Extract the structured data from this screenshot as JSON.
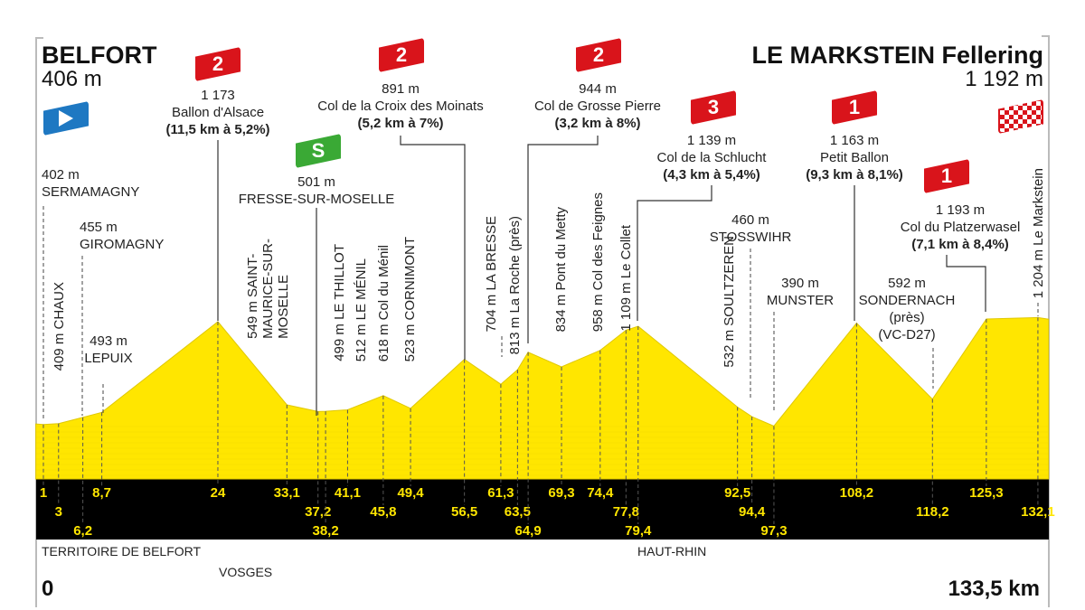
{
  "header": {
    "start_name": "BELFORT",
    "start_alt": "406 m",
    "finish_name": "LE MARKSTEIN Fellering",
    "finish_alt": "1 192 m"
  },
  "colors": {
    "profile": "#FFE600",
    "band": "#000000",
    "km_text": "#FFE600",
    "climb_flag": "#D9141B",
    "sprint_flag": "#3AA935",
    "start_flag": "#1E78C2"
  },
  "icons": {
    "start": "start-flag-icon",
    "finish": "checkered-finish-flag-icon",
    "sprint": "sprint-flag-icon",
    "climb": "climb-category-flag-icon"
  },
  "climbs": [
    {
      "cat": "2",
      "alt": "1 173",
      "name": "Ballon d'Alsace",
      "detail": "(11,5 km à 5,2%)"
    },
    {
      "cat": "2",
      "alt": "891 m",
      "name": "Col de la Croix des Moinats",
      "detail": "(5,2 km à 7%)"
    },
    {
      "cat": "2",
      "alt": "944 m",
      "name": "Col de Grosse Pierre",
      "detail": "(3,2 km à 8%)"
    },
    {
      "cat": "3",
      "alt": "1 139 m",
      "name": "Col de la Schlucht",
      "detail": "(4,3 km à 5,4%)"
    },
    {
      "cat": "1",
      "alt": "1 163 m",
      "name": "Petit Ballon",
      "detail": "(9,3 km à 8,1%)"
    },
    {
      "cat": "1",
      "alt": "1 193 m",
      "name": "Col du Platzerwasel",
      "detail": "(7,1 km à 8,4%)"
    }
  ],
  "sprint": {
    "label": "S",
    "alt": "501 m",
    "name": "FRESSE-SUR-MOSELLE"
  },
  "places": {
    "sermamagny": {
      "alt": "402 m",
      "name": "SERMAMAGNY"
    },
    "giromagny": {
      "alt": "455 m",
      "name": "GIROMAGNY"
    },
    "lepuix": {
      "alt": "493 m",
      "name": "LEPUIX"
    },
    "chaux": "409 m CHAUX",
    "stmaurice": [
      "549 m SAINT-",
      "MAURICE-SUR-",
      "MOSELLE"
    ],
    "thillot": "499 m LE THILLOT",
    "menil": "512 m LE MÉNIL",
    "colmenil": "618 m Col du Ménil",
    "cornimont": "523 m CORNIMONT",
    "bresse": "704 m LA BRESSE",
    "laroche": "813 m La Roche (près)",
    "metty": "834 m Pont du Metty",
    "feignes": "958 m Col des Feignes",
    "collet": "1 109 m Le Collet",
    "soultzeren": "532 m SOULTZEREN",
    "stosswihr": {
      "alt": "460 m",
      "name": "STOSSWIHR"
    },
    "munster": {
      "alt": "390 m",
      "name": "MUNSTER"
    },
    "sondernach": {
      "alt": "592 m",
      "name": "SONDERNACH",
      "l2": "(près)",
      "l3": "(VC-D27)"
    },
    "markstein": "1 204 m Le Markstein"
  },
  "departments": [
    "TERRITOIRE DE BELFORT",
    "VOSGES",
    "HAUT-RHIN"
  ],
  "distance": {
    "start": "0",
    "end": "133,5 km"
  },
  "chart_data": {
    "type": "area",
    "xlabel": "",
    "ylabel": "",
    "xlim": [
      0,
      133.5
    ],
    "points": [
      [
        0,
        406
      ],
      [
        1,
        402
      ],
      [
        3,
        409
      ],
      [
        6.2,
        455
      ],
      [
        8.7,
        493
      ],
      [
        24,
        1173
      ],
      [
        33.1,
        549
      ],
      [
        37.2,
        499
      ],
      [
        38.2,
        501
      ],
      [
        41.1,
        512
      ],
      [
        45.8,
        618
      ],
      [
        49.4,
        523
      ],
      [
        56.5,
        891
      ],
      [
        61.3,
        704
      ],
      [
        63.5,
        813
      ],
      [
        64.9,
        944
      ],
      [
        69.3,
        834
      ],
      [
        74.4,
        958
      ],
      [
        77.8,
        1109
      ],
      [
        79.4,
        1139
      ],
      [
        92.5,
        532
      ],
      [
        94.4,
        460
      ],
      [
        97.3,
        390
      ],
      [
        108.2,
        1163
      ],
      [
        118.2,
        592
      ],
      [
        125.3,
        1193
      ],
      [
        132.1,
        1204
      ],
      [
        133.5,
        1192
      ]
    ],
    "km_labels": [
      "1",
      "3",
      "6,2",
      "8,7",
      "24",
      "33,1",
      "37,2",
      "38,2",
      "41,1",
      "45,8",
      "49,4",
      "56,5",
      "61,3",
      "63,5",
      "64,9",
      "69,3",
      "74,4",
      "77,8",
      "79,4",
      "92,5",
      "94,4",
      "97,3",
      "108,2",
      "118,2",
      "125,3",
      "132,1"
    ]
  }
}
